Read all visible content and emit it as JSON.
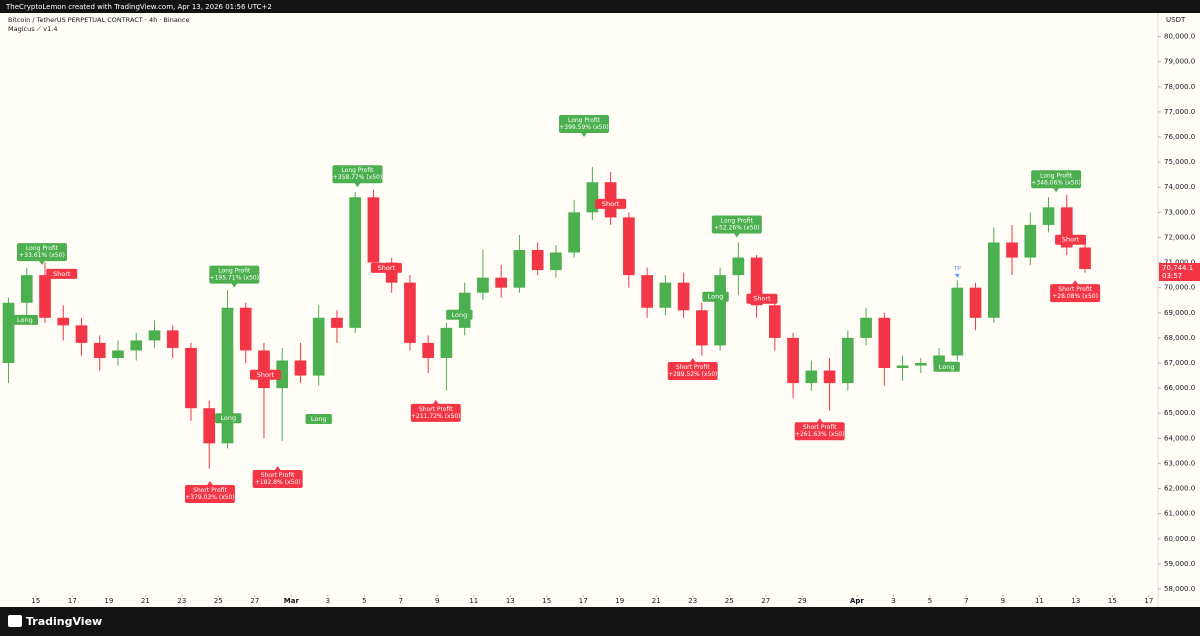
{
  "header": {
    "attribution": "TheCryptoLemon created with TradingView.com, Apr 13, 2026 01:56 UTC+2",
    "brand": "TradingView"
  },
  "chart_data": {
    "type": "candlestick",
    "title": "Bitcoin / TetherUS PERPETUAL CONTRACT · 4h · Binance",
    "subtitle": "Magicus ⟋ v1.4",
    "y_axis_label": "USDT",
    "up_color": "#4caf50",
    "down_color": "#f23645",
    "x": [
      "2026-02-13",
      "2026-02-14",
      "2026-02-15",
      "2026-02-16",
      "2026-02-17",
      "2026-02-18",
      "2026-02-19",
      "2026-02-20",
      "2026-02-21",
      "2026-02-22",
      "2026-02-23",
      "2026-02-24",
      "2026-02-25",
      "2026-02-26",
      "2026-02-27",
      "2026-02-28",
      "2026-03-01",
      "2026-03-02",
      "2026-03-03",
      "2026-03-04",
      "2026-03-05",
      "2026-03-06",
      "2026-03-07",
      "2026-03-08",
      "2026-03-09",
      "2026-03-10",
      "2026-03-11",
      "2026-03-12",
      "2026-03-13",
      "2026-03-14",
      "2026-03-15",
      "2026-03-16",
      "2026-03-17",
      "2026-03-18",
      "2026-03-19",
      "2026-03-20",
      "2026-03-21",
      "2026-03-22",
      "2026-03-23",
      "2026-03-24",
      "2026-03-25",
      "2026-03-26",
      "2026-03-27",
      "2026-03-28",
      "2026-03-29",
      "2026-03-30",
      "2026-03-31",
      "2026-04-01",
      "2026-04-02",
      "2026-04-03",
      "2026-04-04",
      "2026-04-05",
      "2026-04-06",
      "2026-04-07",
      "2026-04-08",
      "2026-04-09",
      "2026-04-10",
      "2026-04-11",
      "2026-04-12",
      "2026-04-13"
    ],
    "open": [
      67000,
      69400,
      70500,
      68800,
      68500,
      67800,
      67200,
      67500,
      67900,
      68300,
      67600,
      65200,
      63800,
      69200,
      67500,
      66000,
      67100,
      66500,
      68800,
      68400,
      73600,
      71000,
      70200,
      67800,
      67200,
      68400,
      69800,
      70400,
      70000,
      71500,
      70700,
      71400,
      73000,
      74200,
      72800,
      70500,
      69200,
      70200,
      69100,
      67700,
      70500,
      71200,
      69300,
      68000,
      66200,
      66700,
      66200,
      68000,
      68800,
      66800,
      66900,
      67000,
      67300,
      70000,
      68800,
      71800,
      71200,
      72500,
      73200,
      71600
    ],
    "high": [
      69600,
      70800,
      71000,
      69300,
      68800,
      68100,
      67900,
      68200,
      68700,
      68500,
      67800,
      65500,
      69900,
      69400,
      67800,
      67600,
      67800,
      69300,
      69100,
      73800,
      73900,
      71200,
      70500,
      68100,
      68600,
      70200,
      71500,
      70900,
      72100,
      71800,
      71700,
      73500,
      74800,
      74600,
      73000,
      70800,
      70500,
      70600,
      69400,
      70800,
      71800,
      71300,
      69600,
      68200,
      67100,
      67200,
      68300,
      69200,
      69000,
      67300,
      67200,
      67600,
      70300,
      70200,
      72400,
      72500,
      73000,
      73600,
      73700,
      71800
    ],
    "low": [
      66200,
      68900,
      68600,
      67900,
      67300,
      66700,
      66900,
      67100,
      67600,
      67200,
      64700,
      62800,
      63600,
      67000,
      64000,
      63900,
      66200,
      66100,
      67800,
      68200,
      70800,
      69800,
      67500,
      66600,
      65900,
      68100,
      69500,
      69600,
      69800,
      70500,
      70400,
      71200,
      72700,
      72500,
      70000,
      68800,
      68900,
      68800,
      67300,
      67500,
      69700,
      68800,
      67500,
      65600,
      65900,
      65100,
      65900,
      67700,
      66100,
      66300,
      66600,
      66700,
      67100,
      68300,
      68600,
      70500,
      70900,
      72200,
      71300,
      70600
    ],
    "close": [
      69400,
      70500,
      68800,
      68500,
      67800,
      67200,
      67500,
      67900,
      68300,
      67600,
      65200,
      63800,
      69200,
      67500,
      66000,
      67100,
      66500,
      68800,
      68400,
      73600,
      71000,
      70200,
      67800,
      67200,
      68400,
      69800,
      70400,
      70000,
      71500,
      70700,
      71400,
      73000,
      74200,
      72800,
      70500,
      69200,
      70200,
      69100,
      67700,
      70500,
      71200,
      69300,
      68000,
      66200,
      66700,
      66200,
      68000,
      68800,
      66800,
      66900,
      67000,
      67300,
      70000,
      68800,
      71800,
      71200,
      72500,
      73200,
      71600,
      70744.1
    ],
    "xlim": [
      "2026-02-13T10:00",
      "2026-04-17T12:00"
    ],
    "xticks": [
      {
        "value": "2026-02-15",
        "label": "15"
      },
      {
        "value": "2026-02-17",
        "label": "17"
      },
      {
        "value": "2026-02-19",
        "label": "19"
      },
      {
        "value": "2026-02-21",
        "label": "21"
      },
      {
        "value": "2026-02-23",
        "label": "23"
      },
      {
        "value": "2026-02-25",
        "label": "25"
      },
      {
        "value": "2026-02-27",
        "label": "27"
      },
      {
        "value": "2026-03-01",
        "label": "Mar"
      },
      {
        "value": "2026-03-03",
        "label": "3"
      },
      {
        "value": "2026-03-05",
        "label": "5"
      },
      {
        "value": "2026-03-07",
        "label": "7"
      },
      {
        "value": "2026-03-09",
        "label": "9"
      },
      {
        "value": "2026-03-11",
        "label": "11"
      },
      {
        "value": "2026-03-13",
        "label": "13"
      },
      {
        "value": "2026-03-15",
        "label": "15"
      },
      {
        "value": "2026-03-17",
        "label": "17"
      },
      {
        "value": "2026-03-19",
        "label": "19"
      },
      {
        "value": "2026-03-21",
        "label": "21"
      },
      {
        "value": "2026-03-23",
        "label": "23"
      },
      {
        "value": "2026-03-25",
        "label": "25"
      },
      {
        "value": "2026-03-27",
        "label": "27"
      },
      {
        "value": "2026-03-29",
        "label": "29"
      },
      {
        "value": "2026-04-01",
        "label": "Apr"
      },
      {
        "value": "2026-04-03",
        "label": "3"
      },
      {
        "value": "2026-04-05",
        "label": "5"
      },
      {
        "value": "2026-04-07",
        "label": "7"
      },
      {
        "value": "2026-04-09",
        "label": "9"
      },
      {
        "value": "2026-04-11",
        "label": "11"
      },
      {
        "value": "2026-04-13",
        "label": "13"
      },
      {
        "value": "2026-04-15",
        "label": "15"
      },
      {
        "value": "2026-04-17",
        "label": "17"
      }
    ],
    "ylim": [
      57800,
      80900
    ],
    "yticks": [
      {
        "value": 58000,
        "label": "58,000.0"
      },
      {
        "value": 59000,
        "label": "59,000.0"
      },
      {
        "value": 60000,
        "label": "60,000.0"
      },
      {
        "value": 61000,
        "label": "61,000.0"
      },
      {
        "value": 62000,
        "label": "62,000.0"
      },
      {
        "value": 63000,
        "label": "63,000.0"
      },
      {
        "value": 64000,
        "label": "64,000.0"
      },
      {
        "value": 65000,
        "label": "65,000.0"
      },
      {
        "value": 66000,
        "label": "66,000.0"
      },
      {
        "value": 67000,
        "label": "67,000.0"
      },
      {
        "value": 68000,
        "label": "68,000.0"
      },
      {
        "value": 69000,
        "label": "69,000.0"
      },
      {
        "value": 70000,
        "label": "70,000.0"
      },
      {
        "value": 71000,
        "label": "71,000.0"
      },
      {
        "value": 72000,
        "label": "72,000.0"
      },
      {
        "value": 73000,
        "label": "73,000.0"
      },
      {
        "value": 74000,
        "label": "74,000.0"
      },
      {
        "value": 75000,
        "label": "75,000.0"
      },
      {
        "value": 76000,
        "label": "76,000.0"
      },
      {
        "value": 77000,
        "label": "77,000.0"
      },
      {
        "value": 78000,
        "label": "78,000.0"
      },
      {
        "value": 79000,
        "label": "79,000.0"
      },
      {
        "value": 80000,
        "label": "80,000.0"
      }
    ],
    "last_price": {
      "value": 70744.1,
      "label": "70,744.1",
      "countdown": "03:57",
      "color": "#f23645"
    },
    "signals": [
      {
        "text": "Long",
        "x": "2026-02-14T09:30",
        "y": 68720,
        "position": "center",
        "color": "#4caf50"
      },
      {
        "text": "Long Profit",
        "value_text": "+33.61% (x50)",
        "x": "2026-02-15T08:00",
        "y": 70900,
        "position": "above",
        "color": "#4caf50"
      },
      {
        "text": "Short",
        "x": "2026-02-16T10:00",
        "y": 70550,
        "position": "center",
        "color": "#f23645"
      },
      {
        "text": "Short Profit",
        "value_text": "+379.03% (x50)",
        "x": "2026-02-24T13:00",
        "y": 62300,
        "position": "below",
        "color": "#f23645"
      },
      {
        "text": "Long",
        "x": "2026-02-25T13:00",
        "y": 64800,
        "position": "center",
        "color": "#4caf50"
      },
      {
        "text": "Long Profit",
        "value_text": "+195.71% (x50)",
        "x": "2026-02-25T21:00",
        "y": 70000,
        "position": "above",
        "color": "#4caf50"
      },
      {
        "text": "Short",
        "x": "2026-02-27T14:00",
        "y": 66530,
        "position": "center",
        "color": "#f23645"
      },
      {
        "text": "Short Profit",
        "value_text": "+182.8% (x50)",
        "x": "2026-02-28T06:00",
        "y": 62900,
        "position": "below",
        "color": "#f23645"
      },
      {
        "text": "Long",
        "x": "2026-03-02T12:00",
        "y": 64770,
        "position": "center",
        "color": "#4caf50"
      },
      {
        "text": "Long Profit",
        "value_text": "+358.77% (x50)",
        "x": "2026-03-04T15:00",
        "y": 74000,
        "position": "above",
        "color": "#4caf50"
      },
      {
        "text": "Short",
        "x": "2026-03-06T05:00",
        "y": 70790,
        "position": "center",
        "color": "#f23645"
      },
      {
        "text": "Short Profit",
        "value_text": "+211.72% (x50)",
        "x": "2026-03-08T22:00",
        "y": 65530,
        "position": "below",
        "color": "#f23645"
      },
      {
        "text": "Long",
        "x": "2026-03-10T05:00",
        "y": 68920,
        "position": "center",
        "color": "#4caf50"
      },
      {
        "text": "Long Profit",
        "value_text": "+399.59% (x50)",
        "x": "2026-03-17T01:00",
        "y": 76000,
        "position": "above",
        "color": "#4caf50"
      },
      {
        "text": "Short",
        "x": "2026-03-18T12:00",
        "y": 73340,
        "position": "center",
        "color": "#f23645"
      },
      {
        "text": "Short Profit",
        "value_text": "+289.52% (x50)",
        "x": "2026-03-23T00:00",
        "y": 67200,
        "position": "below",
        "color": "#f23645"
      },
      {
        "text": "Long",
        "x": "2026-03-24T06:00",
        "y": 69640,
        "position": "center",
        "color": "#4caf50"
      },
      {
        "text": "Long Profit",
        "value_text": "+52.26% (x50)",
        "x": "2026-03-25T10:00",
        "y": 72000,
        "position": "above",
        "color": "#4caf50"
      },
      {
        "text": "Short",
        "x": "2026-03-26T19:00",
        "y": 69560,
        "position": "center",
        "color": "#f23645"
      },
      {
        "text": "Short Profit",
        "value_text": "+261.63% (x50)",
        "x": "2026-03-29T23:00",
        "y": 64800,
        "position": "below",
        "color": "#f23645"
      },
      {
        "text": "Long",
        "x": "2026-04-05T22:00",
        "y": 66850,
        "position": "center",
        "color": "#4caf50"
      },
      {
        "text": "TP",
        "x": "2026-04-06T12:00",
        "y": 70670,
        "position": "marker",
        "color": "#5b9cf6"
      },
      {
        "text": "Long Profit",
        "value_text": "+346.06% (x50)",
        "x": "2026-04-11T22:00",
        "y": 73800,
        "position": "above",
        "color": "#4caf50"
      },
      {
        "text": "Short",
        "x": "2026-04-12T17:00",
        "y": 71910,
        "position": "center",
        "color": "#f23645"
      },
      {
        "text": "Short Profit",
        "value_text": "+28.08% (x50)",
        "x": "2026-04-12T23:00",
        "y": 70300,
        "position": "below",
        "color": "#f23645"
      }
    ]
  }
}
